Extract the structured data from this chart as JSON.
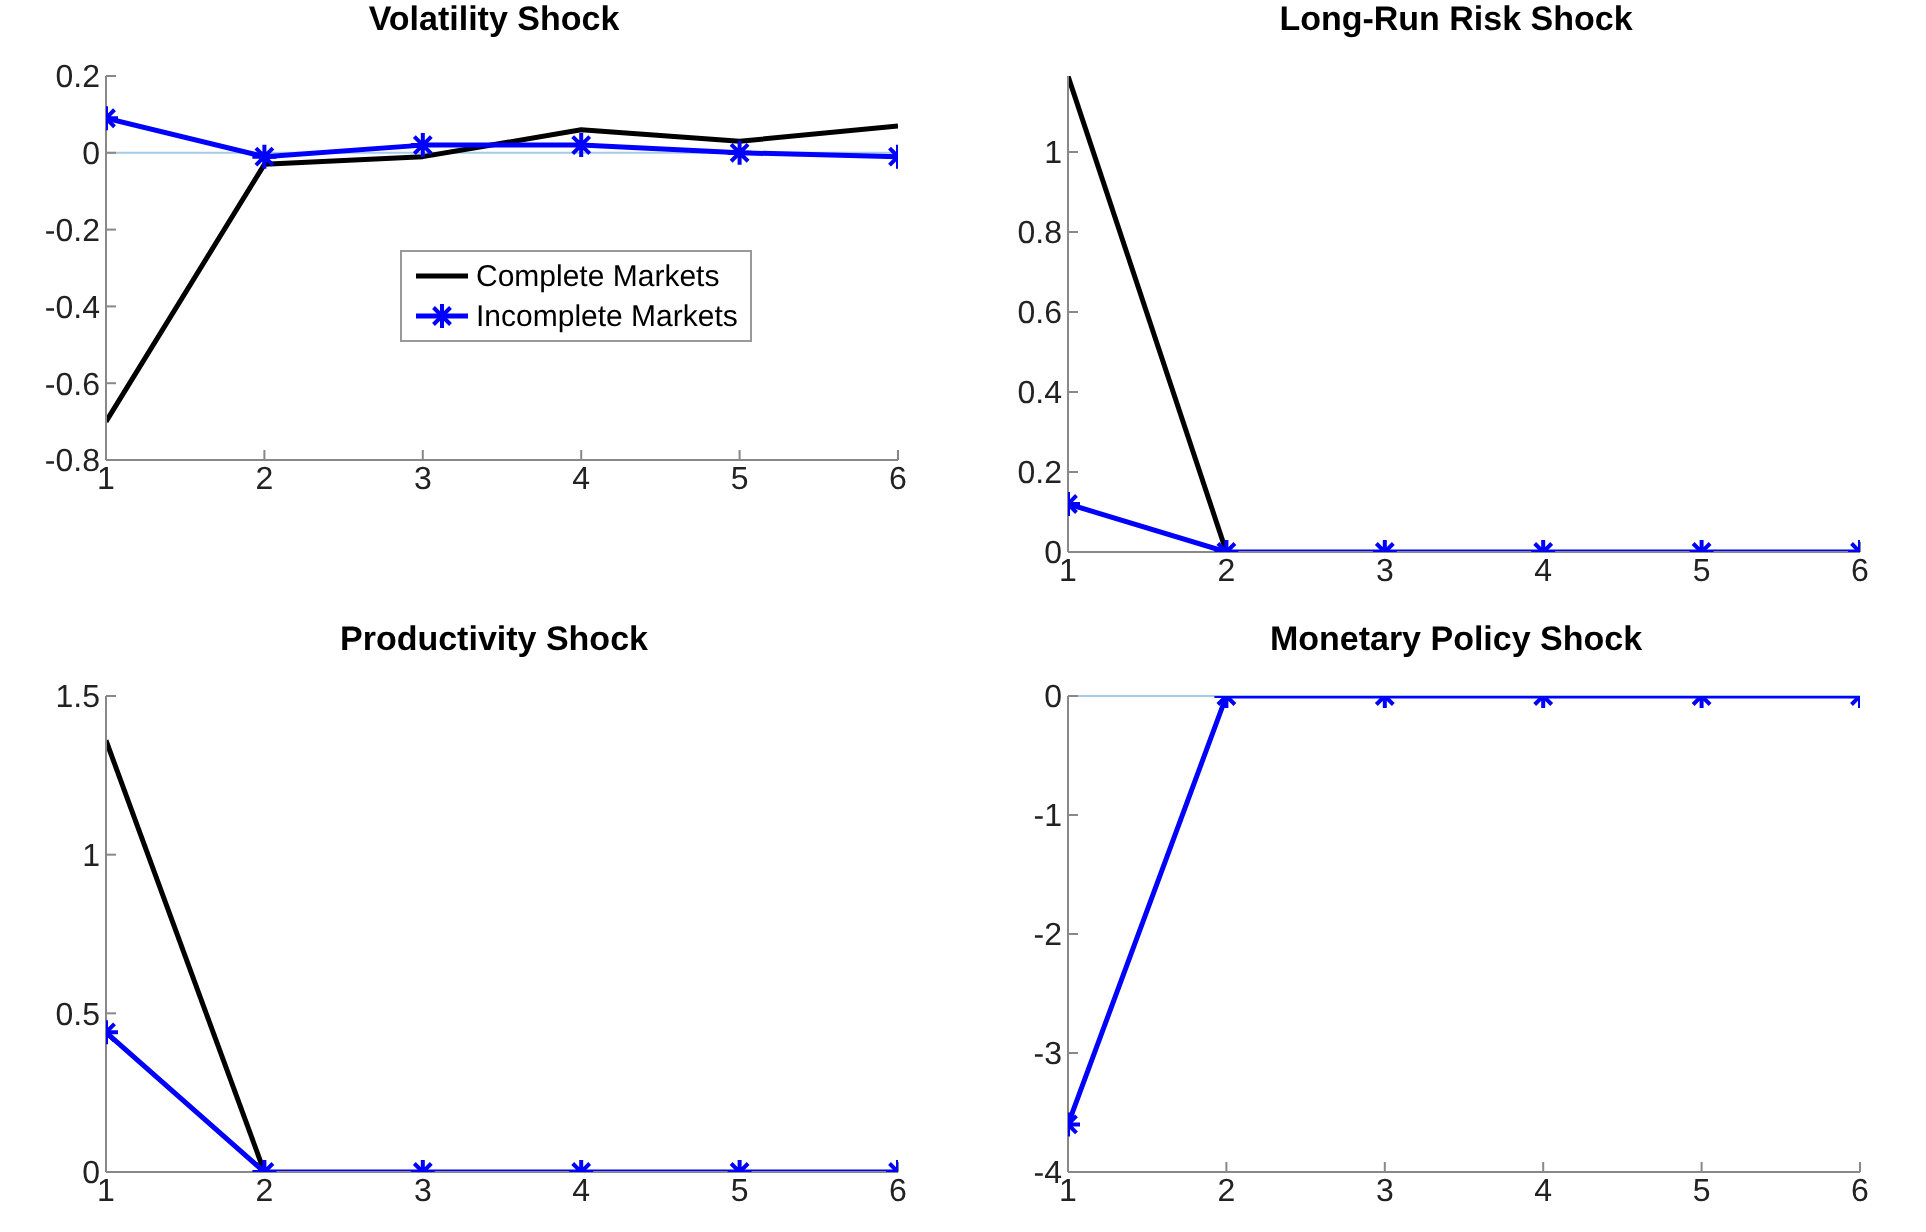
{
  "chart_data": [
    {
      "type": "line",
      "title": "Volatility Shock",
      "x": [
        1,
        2,
        3,
        4,
        5,
        6
      ],
      "xlim": [
        1,
        6
      ],
      "xticks": [
        1,
        2,
        3,
        4,
        5,
        6
      ],
      "ylim": [
        -0.8,
        0.2
      ],
      "yticks": [
        -0.8,
        -0.6,
        -0.4,
        -0.2,
        0,
        0.2
      ],
      "legend": "center right",
      "grid": false,
      "line_style": "solid",
      "ref_lines": [
        {
          "axis": "y",
          "value": 0,
          "color": "#a6cbe6"
        }
      ],
      "series": [
        {
          "name": "Complete Markets",
          "color": "#000000",
          "marker": "none",
          "values": [
            -0.7,
            -0.03,
            -0.01,
            0.06,
            0.03,
            0.07
          ]
        },
        {
          "name": "Incomplete Markets",
          "color": "#0000ff",
          "marker": "cross",
          "values": [
            0.09,
            -0.01,
            0.02,
            0.02,
            0,
            -0.01
          ]
        }
      ]
    },
    {
      "type": "line",
      "title": "Long-Run Risk Shock",
      "x": [
        1,
        2,
        3,
        4,
        5,
        6
      ],
      "xlim": [
        1,
        6
      ],
      "xticks": [
        1,
        2,
        3,
        4,
        5,
        6
      ],
      "ylim": [
        0,
        1.19
      ],
      "yticks": [
        0,
        0.2,
        0.4,
        0.6,
        0.8,
        1
      ],
      "legend": false,
      "grid": false,
      "line_style": "solid",
      "series": [
        {
          "color": "#000000",
          "marker": "none",
          "values": [
            1.19,
            0,
            null,
            null,
            null,
            null
          ]
        },
        {
          "color": "#0000ff",
          "marker": "cross",
          "values": [
            0.12,
            0,
            0,
            0,
            0,
            0
          ]
        }
      ]
    },
    {
      "type": "line",
      "title": "Productivity Shock",
      "x": [
        1,
        2,
        3,
        4,
        5,
        6
      ],
      "xlim": [
        1,
        6
      ],
      "xticks": [
        1,
        2,
        3,
        4,
        5,
        6
      ],
      "ylim": [
        0,
        1.5
      ],
      "yticks": [
        0,
        0.5,
        1,
        1.5
      ],
      "legend": false,
      "grid": false,
      "line_style": "solid",
      "series": [
        {
          "color": "#000000",
          "marker": "none",
          "values": [
            1.36,
            0,
            null,
            null,
            null,
            null
          ]
        },
        {
          "color": "#0000ff",
          "marker": "cross",
          "values": [
            0.44,
            0,
            0,
            0,
            0,
            0
          ]
        }
      ]
    },
    {
      "type": "line",
      "title": "Monetary Policy Shock",
      "x": [
        1,
        2,
        3,
        4,
        5,
        6
      ],
      "xlim": [
        1,
        6
      ],
      "xticks": [
        1,
        2,
        3,
        4,
        5,
        6
      ],
      "ylim": [
        -4,
        0
      ],
      "yticks": [
        -4,
        -3,
        -2,
        -1,
        0
      ],
      "legend": false,
      "grid": false,
      "line_style": "solid",
      "ref_lines": [
        {
          "axis": "y",
          "value": 0,
          "color": "#a6cbe6"
        }
      ],
      "series": [
        {
          "color": "#0000ff",
          "marker": "cross",
          "values": [
            -3.6,
            0,
            0,
            0,
            0,
            0
          ]
        }
      ]
    }
  ]
}
